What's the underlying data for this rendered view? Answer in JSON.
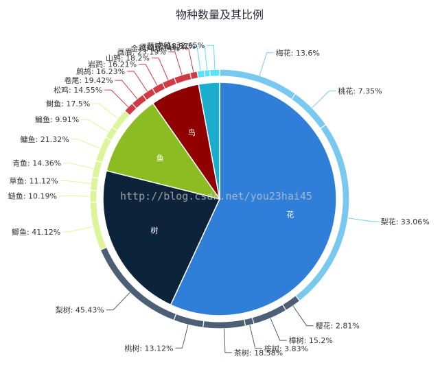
{
  "watermark": "http://blog.csdn.net/you23hai45",
  "chart_data": {
    "type": "pie",
    "title": "物种数量及其比例",
    "inner": {
      "categories": [
        "花",
        "树",
        "鱼",
        "鸟",
        ""
      ],
      "values": [
        56.9,
        22.0,
        11.4,
        6.8,
        2.9
      ],
      "colors": [
        "#2f7ed8",
        "#0d233a",
        "#8bbc21",
        "#910000",
        "#1aadce"
      ]
    },
    "outer": {
      "groups": [
        {
          "color": "#79c8f0",
          "items": [
            "梅花: 13.6%",
            "桃花: 7.35%",
            "梨花: 33.06%"
          ],
          "values": [
            7.74,
            4.18,
            18.81
          ]
        },
        {
          "color": "#4c5f74",
          "items": [
            "樱花: 2.81%",
            "樟树: 15.2%",
            "桉树: 3.83%",
            "茶树: 18.58%",
            "桃树: 13.12%",
            "梨树: 45.43%"
          ],
          "values": [
            1.6,
            3.34,
            0.84,
            4.09,
            2.89,
            9.99
          ]
        },
        {
          "color": "#ddf59a",
          "items": [
            "鲫鱼: 41.12%",
            "鲢鱼: 10.19%",
            "草鱼: 11.12%",
            "青鱼: 14.36%",
            "鳙鱼: 21.32%",
            "鳊鱼: 9.91%",
            "鲥鱼: 17.5%"
          ],
          "values": [
            4.69,
            1.16,
            1.27,
            1.64,
            2.43,
            1.13,
            1.99
          ]
        },
        {
          "color": "#d03a44",
          "items": [
            "松鸡: 14.55%",
            "卷尾: 19.42%",
            "鹧鸪: 16.23%",
            "岩鹨: 16.21%",
            "山鹑: 18.2%",
            "画眉: 23.19%",
            "金鸡: 10.14%"
          ],
          "values": [
            0.99,
            1.32,
            1.1,
            1.1,
            1.24,
            1.58,
            0.69
          ]
        },
        {
          "color": "#5ce1f4",
          "items": [
            "须鲸: 24.12%",
            "蓝鲸: 18.37%",
            "虎鲸: 32.65%"
          ],
          "values": [
            0.7,
            0.53,
            0.95
          ]
        }
      ]
    }
  }
}
